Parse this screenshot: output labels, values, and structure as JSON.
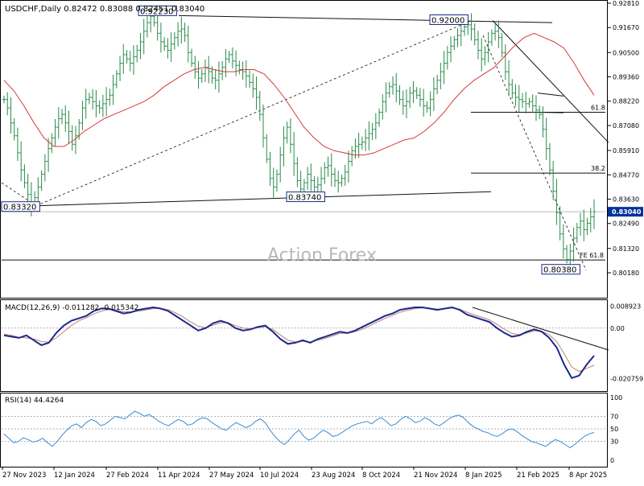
{
  "chart_data": [
    {
      "panel": "price",
      "type": "ohlc",
      "title": "USDCHF,Daily",
      "ohlc_readout": [
        "0.82472",
        "0.83088",
        "0.82451",
        "0.83040"
      ],
      "watermark": "Action Forex",
      "y_range": [
        0.8018,
        0.9281
      ],
      "y_ticks": [
        "0.92810",
        "0.91670",
        "0.90500",
        "0.89360",
        "0.88220",
        "0.87080",
        "0.85910",
        "0.84770",
        "0.83630",
        "0.82490",
        "0.81320",
        "0.80180"
      ],
      "current_price": "0.83040",
      "x_labels": [
        "27 Nov 2023",
        "12 Jan 2024",
        "27 Feb 2024",
        "11 Apr 2024",
        "27 May 2024",
        "10 Jul 2024",
        "23 Aug 2024",
        "8 Oct 2024",
        "21 Nov 2024",
        "8 Jan 2025",
        "21 Feb 2025",
        "8 Apr 2025"
      ],
      "close_series": [
        0.883,
        0.879,
        0.872,
        0.866,
        0.858,
        0.85,
        0.844,
        0.8385,
        0.834,
        0.837,
        0.842,
        0.848,
        0.854,
        0.86,
        0.865,
        0.87,
        0.874,
        0.876,
        0.872,
        0.868,
        0.862,
        0.866,
        0.872,
        0.879,
        0.883,
        0.884,
        0.882,
        0.88,
        0.879,
        0.881,
        0.883,
        0.885,
        0.89,
        0.895,
        0.9,
        0.904,
        0.902,
        0.9,
        0.903,
        0.906,
        0.91,
        0.915,
        0.919,
        0.922,
        0.919,
        0.914,
        0.91,
        0.908,
        0.906,
        0.909,
        0.912,
        0.915,
        0.916,
        0.913,
        0.905,
        0.9,
        0.896,
        0.893,
        0.895,
        0.898,
        0.896,
        0.893,
        0.892,
        0.895,
        0.898,
        0.902,
        0.904,
        0.901,
        0.899,
        0.897,
        0.896,
        0.894,
        0.891,
        0.888,
        0.884,
        0.876,
        0.865,
        0.855,
        0.846,
        0.842,
        0.848,
        0.857,
        0.865,
        0.87,
        0.862,
        0.853,
        0.845,
        0.841,
        0.844,
        0.848,
        0.845,
        0.842,
        0.843,
        0.846,
        0.851,
        0.852,
        0.848,
        0.845,
        0.844,
        0.846,
        0.849,
        0.854,
        0.859,
        0.861,
        0.862,
        0.863,
        0.865,
        0.867,
        0.869,
        0.872,
        0.877,
        0.882,
        0.886,
        0.889,
        0.89,
        0.887,
        0.883,
        0.88,
        0.882,
        0.886,
        0.887,
        0.885,
        0.883,
        0.88,
        0.879,
        0.883,
        0.888,
        0.892,
        0.896,
        0.9,
        0.905,
        0.908,
        0.911,
        0.913,
        0.915,
        0.917,
        0.918,
        0.916,
        0.911,
        0.906,
        0.902,
        0.905,
        0.91,
        0.914,
        0.915,
        0.912,
        0.905,
        0.896,
        0.89,
        0.886,
        0.884,
        0.883,
        0.882,
        0.881,
        0.882,
        0.88,
        0.878,
        0.876,
        0.869,
        0.86,
        0.85,
        0.84,
        0.83,
        0.82,
        0.813,
        0.808,
        0.812,
        0.818,
        0.823,
        0.826,
        0.822,
        0.825,
        0.828,
        0.8304
      ],
      "ma_series": [
        0.892,
        0.887,
        0.88,
        0.872,
        0.865,
        0.861,
        0.861,
        0.864,
        0.868,
        0.871,
        0.874,
        0.876,
        0.878,
        0.88,
        0.882,
        0.885,
        0.889,
        0.892,
        0.895,
        0.897,
        0.898,
        0.897,
        0.896,
        0.896,
        0.897,
        0.897,
        0.895,
        0.89,
        0.884,
        0.877,
        0.87,
        0.865,
        0.861,
        0.859,
        0.858,
        0.857,
        0.857,
        0.858,
        0.86,
        0.862,
        0.864,
        0.865,
        0.868,
        0.872,
        0.877,
        0.883,
        0.888,
        0.892,
        0.895,
        0.898,
        0.903,
        0.908,
        0.912,
        0.914,
        0.912,
        0.91,
        0.907,
        0.9,
        0.892,
        0.885
      ],
      "annotations": {
        "labels": [
          "0.92230",
          "0.92000",
          "0.83740",
          "0.83320",
          "0.80380"
        ],
        "fib_levels": [
          "61.8",
          "38.2",
          "FE 61.8"
        ]
      },
      "colors": {
        "bars": "#2a8a4a",
        "ma": "#d63a3a",
        "trend": "#111111",
        "price_label_bg": "#003399"
      }
    },
    {
      "panel": "macd",
      "type": "line",
      "title": "MACD(12,26,9) -0.011282 -0.015342",
      "y_ticks": [
        "0.008923",
        "0.00",
        "-0.020759"
      ],
      "y_range": [
        -0.0232,
        0.0095
      ],
      "macd_series": [
        -0.003,
        -0.0035,
        -0.004,
        -0.003,
        -0.005,
        -0.007,
        -0.006,
        -0.002,
        0.001,
        0.003,
        0.004,
        0.005,
        0.007,
        0.008,
        0.008,
        0.007,
        0.006,
        0.0065,
        0.0075,
        0.008,
        0.0085,
        0.008,
        0.007,
        0.005,
        0.003,
        0.001,
        -0.001,
        0.0,
        0.002,
        0.003,
        0.002,
        0.0,
        -0.001,
        -0.0005,
        0.0005,
        0.001,
        -0.0015,
        -0.0045,
        -0.0065,
        -0.006,
        -0.005,
        -0.006,
        -0.0045,
        -0.0035,
        -0.0025,
        -0.0015,
        -0.002,
        -0.001,
        0.0005,
        0.002,
        0.0035,
        0.005,
        0.006,
        0.0075,
        0.008,
        0.0085,
        0.0085,
        0.008,
        0.0075,
        0.008,
        0.0085,
        0.0075,
        0.0055,
        0.0045,
        0.0035,
        0.0025,
        0.0,
        -0.002,
        -0.0035,
        -0.003,
        -0.0015,
        -0.0005,
        -0.0015,
        -0.004,
        -0.008,
        -0.015,
        -0.0205,
        -0.0195,
        -0.015,
        -0.0113
      ],
      "signal_series": [
        -0.0025,
        -0.003,
        -0.0038,
        -0.004,
        -0.0045,
        -0.0055,
        -0.0058,
        -0.004,
        -0.0015,
        0.001,
        0.003,
        0.0042,
        0.0058,
        0.007,
        0.0076,
        0.0074,
        0.0068,
        0.0066,
        0.007,
        0.0075,
        0.008,
        0.0081,
        0.0076,
        0.0062,
        0.0045,
        0.0025,
        0.0008,
        0.0002,
        0.0012,
        0.0022,
        0.0022,
        0.001,
        0.0,
        -0.0003,
        0.0002,
        0.0006,
        -0.0005,
        -0.0028,
        -0.005,
        -0.0057,
        -0.0054,
        -0.0057,
        -0.005,
        -0.0042,
        -0.0032,
        -0.0022,
        -0.0021,
        -0.0015,
        -0.0004,
        0.001,
        0.0025,
        0.004,
        0.0052,
        0.0065,
        0.0073,
        0.008,
        0.0083,
        0.0082,
        0.0078,
        0.0079,
        0.0082,
        0.0078,
        0.0065,
        0.0054,
        0.0044,
        0.0034,
        0.0015,
        -0.0005,
        -0.0022,
        -0.0027,
        -0.002,
        -0.0011,
        -0.0013,
        -0.0028,
        -0.0055,
        -0.0105,
        -0.016,
        -0.0178,
        -0.0165,
        -0.0153
      ],
      "colors": {
        "macd": "#1a2a8a",
        "signal": "#c08080"
      }
    },
    {
      "panel": "rsi",
      "type": "line",
      "title": "RSI(14) 44.4264",
      "y_ticks": [
        "100",
        "70",
        "50",
        "30",
        "0"
      ],
      "y_range": [
        0,
        100
      ],
      "levels": [
        70,
        50,
        30
      ],
      "series": [
        42,
        35,
        28,
        30,
        36,
        33,
        29,
        31,
        35,
        28,
        22,
        30,
        40,
        48,
        55,
        58,
        52,
        60,
        65,
        62,
        55,
        58,
        64,
        70,
        68,
        66,
        72,
        78,
        75,
        70,
        73,
        68,
        62,
        58,
        55,
        60,
        65,
        62,
        56,
        58,
        64,
        68,
        66,
        60,
        55,
        50,
        48,
        55,
        60,
        56,
        52,
        55,
        62,
        66,
        60,
        48,
        38,
        30,
        25,
        33,
        42,
        48,
        38,
        32,
        35,
        42,
        48,
        44,
        38,
        40,
        45,
        50,
        55,
        58,
        60,
        62,
        58,
        64,
        68,
        62,
        55,
        58,
        65,
        70,
        66,
        60,
        62,
        68,
        64,
        58,
        55,
        60,
        66,
        70,
        72,
        68,
        60,
        54,
        50,
        46,
        44,
        40,
        38,
        42,
        48,
        50,
        46,
        40,
        35,
        30,
        28,
        25,
        22,
        28,
        33,
        30,
        25,
        20,
        25,
        32,
        38,
        42,
        44.4
      ],
      "colors": {
        "line": "#3a8ad6"
      }
    }
  ]
}
